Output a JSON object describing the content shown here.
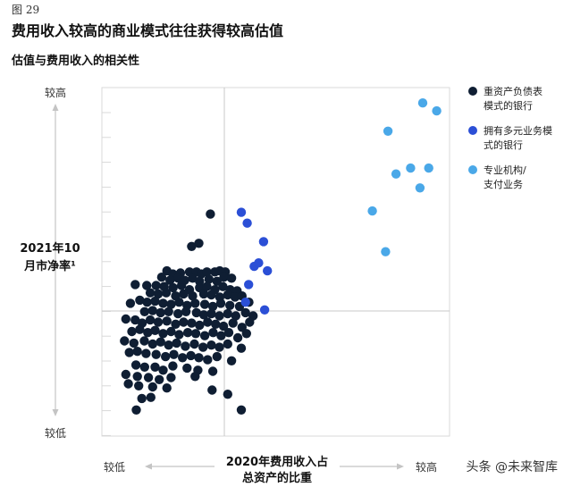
{
  "figure_label": "图 29",
  "title": "费用收入较高的商业模式往往获得较高估值",
  "subtitle": "估值与费用收入的相关性",
  "watermark": "头条 @未来智库",
  "chart_data": {
    "type": "scatter",
    "ylabel_lines": [
      "2021年10",
      "月市净率¹"
    ],
    "xlabel_lines": [
      "2020年费用收入占",
      "总资产的比重"
    ],
    "y_axis": {
      "high": "较高",
      "low": "较低"
    },
    "x_axis": {
      "low": "较低",
      "high": "较高"
    },
    "xlim": [
      0,
      100
    ],
    "ylim": [
      0,
      100
    ],
    "grid": true,
    "legend_position": "right",
    "series": [
      {
        "name": "重资产负债表模式的银行",
        "name_lines": [
          "重资产负债表",
          "模式的银行"
        ],
        "color": "#0f1e33",
        "points": [
          [
            31.2,
            63.7
          ],
          [
            27.9,
            55.3
          ],
          [
            25.8,
            54.4
          ],
          [
            18.7,
            47.4
          ],
          [
            20.4,
            46.5
          ],
          [
            22.6,
            46.8
          ],
          [
            25.2,
            47.1
          ],
          [
            27.2,
            47.1
          ],
          [
            28.6,
            46.5
          ],
          [
            30.2,
            47.1
          ],
          [
            32.5,
            47.1
          ],
          [
            33.9,
            47.4
          ],
          [
            35.5,
            47.1
          ],
          [
            17.2,
            45.6
          ],
          [
            19.6,
            44.7
          ],
          [
            21.9,
            45.3
          ],
          [
            23.8,
            44.7
          ],
          [
            26.1,
            45.3
          ],
          [
            28.1,
            44.4
          ],
          [
            30.8,
            45.0
          ],
          [
            33.1,
            44.4
          ],
          [
            35.1,
            45.6
          ],
          [
            37.3,
            45.3
          ],
          [
            9.6,
            43.5
          ],
          [
            12.9,
            43.2
          ],
          [
            15.6,
            43.2
          ],
          [
            17.9,
            42.9
          ],
          [
            20.5,
            42.6
          ],
          [
            22.9,
            43.2
          ],
          [
            25.2,
            42.0
          ],
          [
            28.1,
            42.6
          ],
          [
            30.2,
            42.9
          ],
          [
            32.5,
            42.0
          ],
          [
            34.8,
            42.9
          ],
          [
            36.9,
            42.0
          ],
          [
            38.9,
            41.7
          ],
          [
            13.9,
            41.1
          ],
          [
            16.2,
            40.8
          ],
          [
            18.5,
            41.1
          ],
          [
            21.2,
            40.2
          ],
          [
            23.5,
            40.8
          ],
          [
            26.1,
            40.2
          ],
          [
            29.3,
            40.8
          ],
          [
            31.5,
            40.5
          ],
          [
            33.9,
            39.9
          ],
          [
            36.2,
            40.5
          ],
          [
            38.3,
            39.9
          ],
          [
            40.3,
            40.2
          ],
          [
            8.2,
            38.1
          ],
          [
            10.9,
            39.0
          ],
          [
            13.0,
            38.4
          ],
          [
            15.3,
            38.7
          ],
          [
            17.6,
            38.1
          ],
          [
            19.9,
            37.8
          ],
          [
            22.2,
            38.4
          ],
          [
            24.5,
            37.5
          ],
          [
            26.8,
            38.1
          ],
          [
            29.6,
            37.8
          ],
          [
            31.9,
            37.2
          ],
          [
            34.2,
            38.1
          ],
          [
            36.8,
            37.5
          ],
          [
            39.6,
            37.2
          ],
          [
            42.3,
            38.4
          ],
          [
            12.3,
            35.7
          ],
          [
            14.6,
            36.0
          ],
          [
            16.9,
            35.4
          ],
          [
            19.2,
            35.7
          ],
          [
            21.9,
            35.1
          ],
          [
            24.2,
            35.7
          ],
          [
            27.2,
            35.4
          ],
          [
            29.3,
            34.8
          ],
          [
            31.5,
            35.1
          ],
          [
            33.8,
            34.5
          ],
          [
            36.2,
            35.1
          ],
          [
            38.5,
            34.5
          ],
          [
            41.3,
            35.4
          ],
          [
            43.5,
            34.5
          ],
          [
            6.9,
            33.6
          ],
          [
            9.6,
            33.3
          ],
          [
            11.6,
            32.4
          ],
          [
            13.9,
            33.3
          ],
          [
            16.2,
            32.7
          ],
          [
            18.7,
            33.0
          ],
          [
            21.2,
            32.1
          ],
          [
            23.5,
            32.7
          ],
          [
            25.8,
            32.4
          ],
          [
            28.1,
            31.8
          ],
          [
            30.4,
            32.7
          ],
          [
            32.7,
            32.1
          ],
          [
            35.0,
            31.5
          ],
          [
            37.7,
            32.4
          ],
          [
            40.3,
            31.2
          ],
          [
            42.5,
            32.7
          ],
          [
            8.6,
            30.0
          ],
          [
            10.9,
            30.6
          ],
          [
            13.2,
            29.7
          ],
          [
            15.3,
            30.3
          ],
          [
            17.6,
            29.4
          ],
          [
            19.9,
            30.0
          ],
          [
            22.2,
            29.1
          ],
          [
            24.7,
            29.7
          ],
          [
            27.0,
            29.4
          ],
          [
            29.6,
            28.8
          ],
          [
            32.0,
            29.7
          ],
          [
            34.3,
            28.8
          ],
          [
            36.5,
            29.7
          ],
          [
            39.1,
            28.2
          ],
          [
            41.6,
            29.4
          ],
          [
            6.5,
            27.3
          ],
          [
            9.2,
            26.7
          ],
          [
            12.2,
            27.3
          ],
          [
            14.6,
            26.4
          ],
          [
            16.9,
            27.0
          ],
          [
            19.2,
            26.1
          ],
          [
            21.5,
            26.7
          ],
          [
            24.0,
            25.8
          ],
          [
            26.6,
            26.4
          ],
          [
            29.1,
            25.5
          ],
          [
            31.5,
            26.1
          ],
          [
            33.8,
            25.5
          ],
          [
            36.2,
            26.4
          ],
          [
            40.1,
            25.2
          ],
          [
            7.9,
            24.0
          ],
          [
            10.2,
            24.3
          ],
          [
            12.7,
            23.7
          ],
          [
            15.6,
            23.4
          ],
          [
            18.3,
            22.8
          ],
          [
            20.7,
            23.4
          ],
          [
            23.2,
            22.5
          ],
          [
            25.6,
            23.1
          ],
          [
            27.9,
            22.5
          ],
          [
            30.4,
            21.9
          ],
          [
            33.1,
            22.8
          ],
          [
            37.3,
            21.6
          ],
          [
            9.8,
            20.4
          ],
          [
            12.3,
            19.8
          ],
          [
            15.3,
            19.8
          ],
          [
            17.6,
            18.9
          ],
          [
            20.4,
            20.1
          ],
          [
            24.5,
            19.5
          ],
          [
            27.6,
            18.9
          ],
          [
            31.9,
            18.6
          ],
          [
            6.9,
            17.7
          ],
          [
            10.2,
            17.1
          ],
          [
            13.4,
            16.8
          ],
          [
            16.5,
            16.2
          ],
          [
            19.9,
            16.8
          ],
          [
            26.8,
            17.1
          ],
          [
            7.6,
            15.0
          ],
          [
            10.6,
            14.4
          ],
          [
            14.6,
            14.1
          ],
          [
            18.7,
            13.8
          ],
          [
            31.7,
            13.2
          ],
          [
            36.2,
            12.0
          ],
          [
            11.5,
            10.8
          ],
          [
            14.1,
            11.1
          ],
          [
            9.9,
            7.5
          ],
          [
            40.1,
            7.5
          ]
        ]
      },
      {
        "name": "拥有多元业务模式的银行",
        "name_lines": [
          "拥有多元业务模",
          "式的银行"
        ],
        "color": "#2b4fd6",
        "points": [
          [
            40.1,
            64.2
          ],
          [
            41.8,
            61.1
          ],
          [
            46.5,
            55.8
          ],
          [
            43.8,
            48.7
          ],
          [
            45.1,
            49.7
          ],
          [
            47.6,
            47.4
          ],
          [
            42.2,
            43.5
          ],
          [
            41.3,
            38.4
          ],
          [
            46.8,
            36.2
          ]
        ]
      },
      {
        "name": "专业机构/支付业务",
        "name_lines": [
          "专业机构/",
          "支付业务"
        ],
        "color": "#4aa8e8",
        "points": [
          [
            92.3,
            95.6
          ],
          [
            96.3,
            93.3
          ],
          [
            82.3,
            87.5
          ],
          [
            88.8,
            76.9
          ],
          [
            84.6,
            75.2
          ],
          [
            94.0,
            76.9
          ],
          [
            91.5,
            71.2
          ],
          [
            77.8,
            64.6
          ],
          [
            81.6,
            52.9
          ]
        ]
      }
    ]
  }
}
